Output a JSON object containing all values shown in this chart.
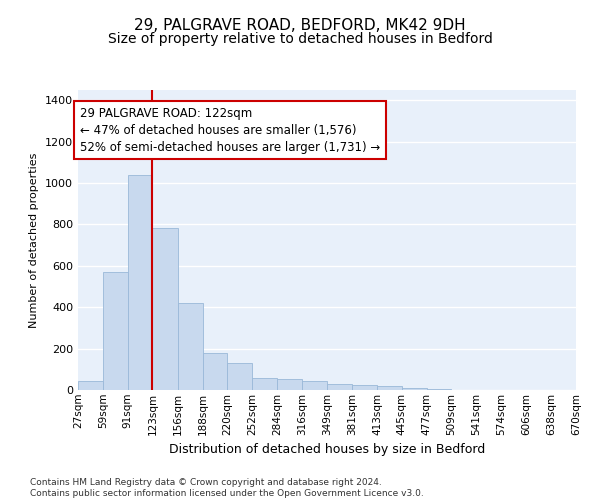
{
  "title1": "29, PALGRAVE ROAD, BEDFORD, MK42 9DH",
  "title2": "Size of property relative to detached houses in Bedford",
  "xlabel": "Distribution of detached houses by size in Bedford",
  "ylabel": "Number of detached properties",
  "bar_color": "#c8d9ee",
  "bar_edge_color": "#9ab8d8",
  "background_color": "#e8f0fa",
  "grid_color": "#ffffff",
  "annotation_line1": "29 PALGRAVE ROAD: 122sqm",
  "annotation_line2": "← 47% of detached houses are smaller (1,576)",
  "annotation_line3": "52% of semi-detached houses are larger (1,731) →",
  "annotation_box_color": "#cc0000",
  "vline_x": 123,
  "vline_color": "#cc0000",
  "footer_text": "Contains HM Land Registry data © Crown copyright and database right 2024.\nContains public sector information licensed under the Open Government Licence v3.0.",
  "bin_edges": [
    27,
    59,
    91,
    123,
    156,
    188,
    220,
    252,
    284,
    316,
    349,
    381,
    413,
    445,
    477,
    509,
    541,
    574,
    606,
    638,
    670
  ],
  "bar_heights": [
    45,
    570,
    1040,
    785,
    420,
    180,
    130,
    60,
    55,
    45,
    28,
    25,
    20,
    10,
    3,
    1,
    0,
    0,
    0,
    0
  ],
  "ylim": [
    0,
    1450
  ],
  "yticks": [
    0,
    200,
    400,
    600,
    800,
    1000,
    1200,
    1400
  ],
  "title1_fontsize": 11,
  "title2_fontsize": 10,
  "xlabel_fontsize": 9,
  "ylabel_fontsize": 8
}
